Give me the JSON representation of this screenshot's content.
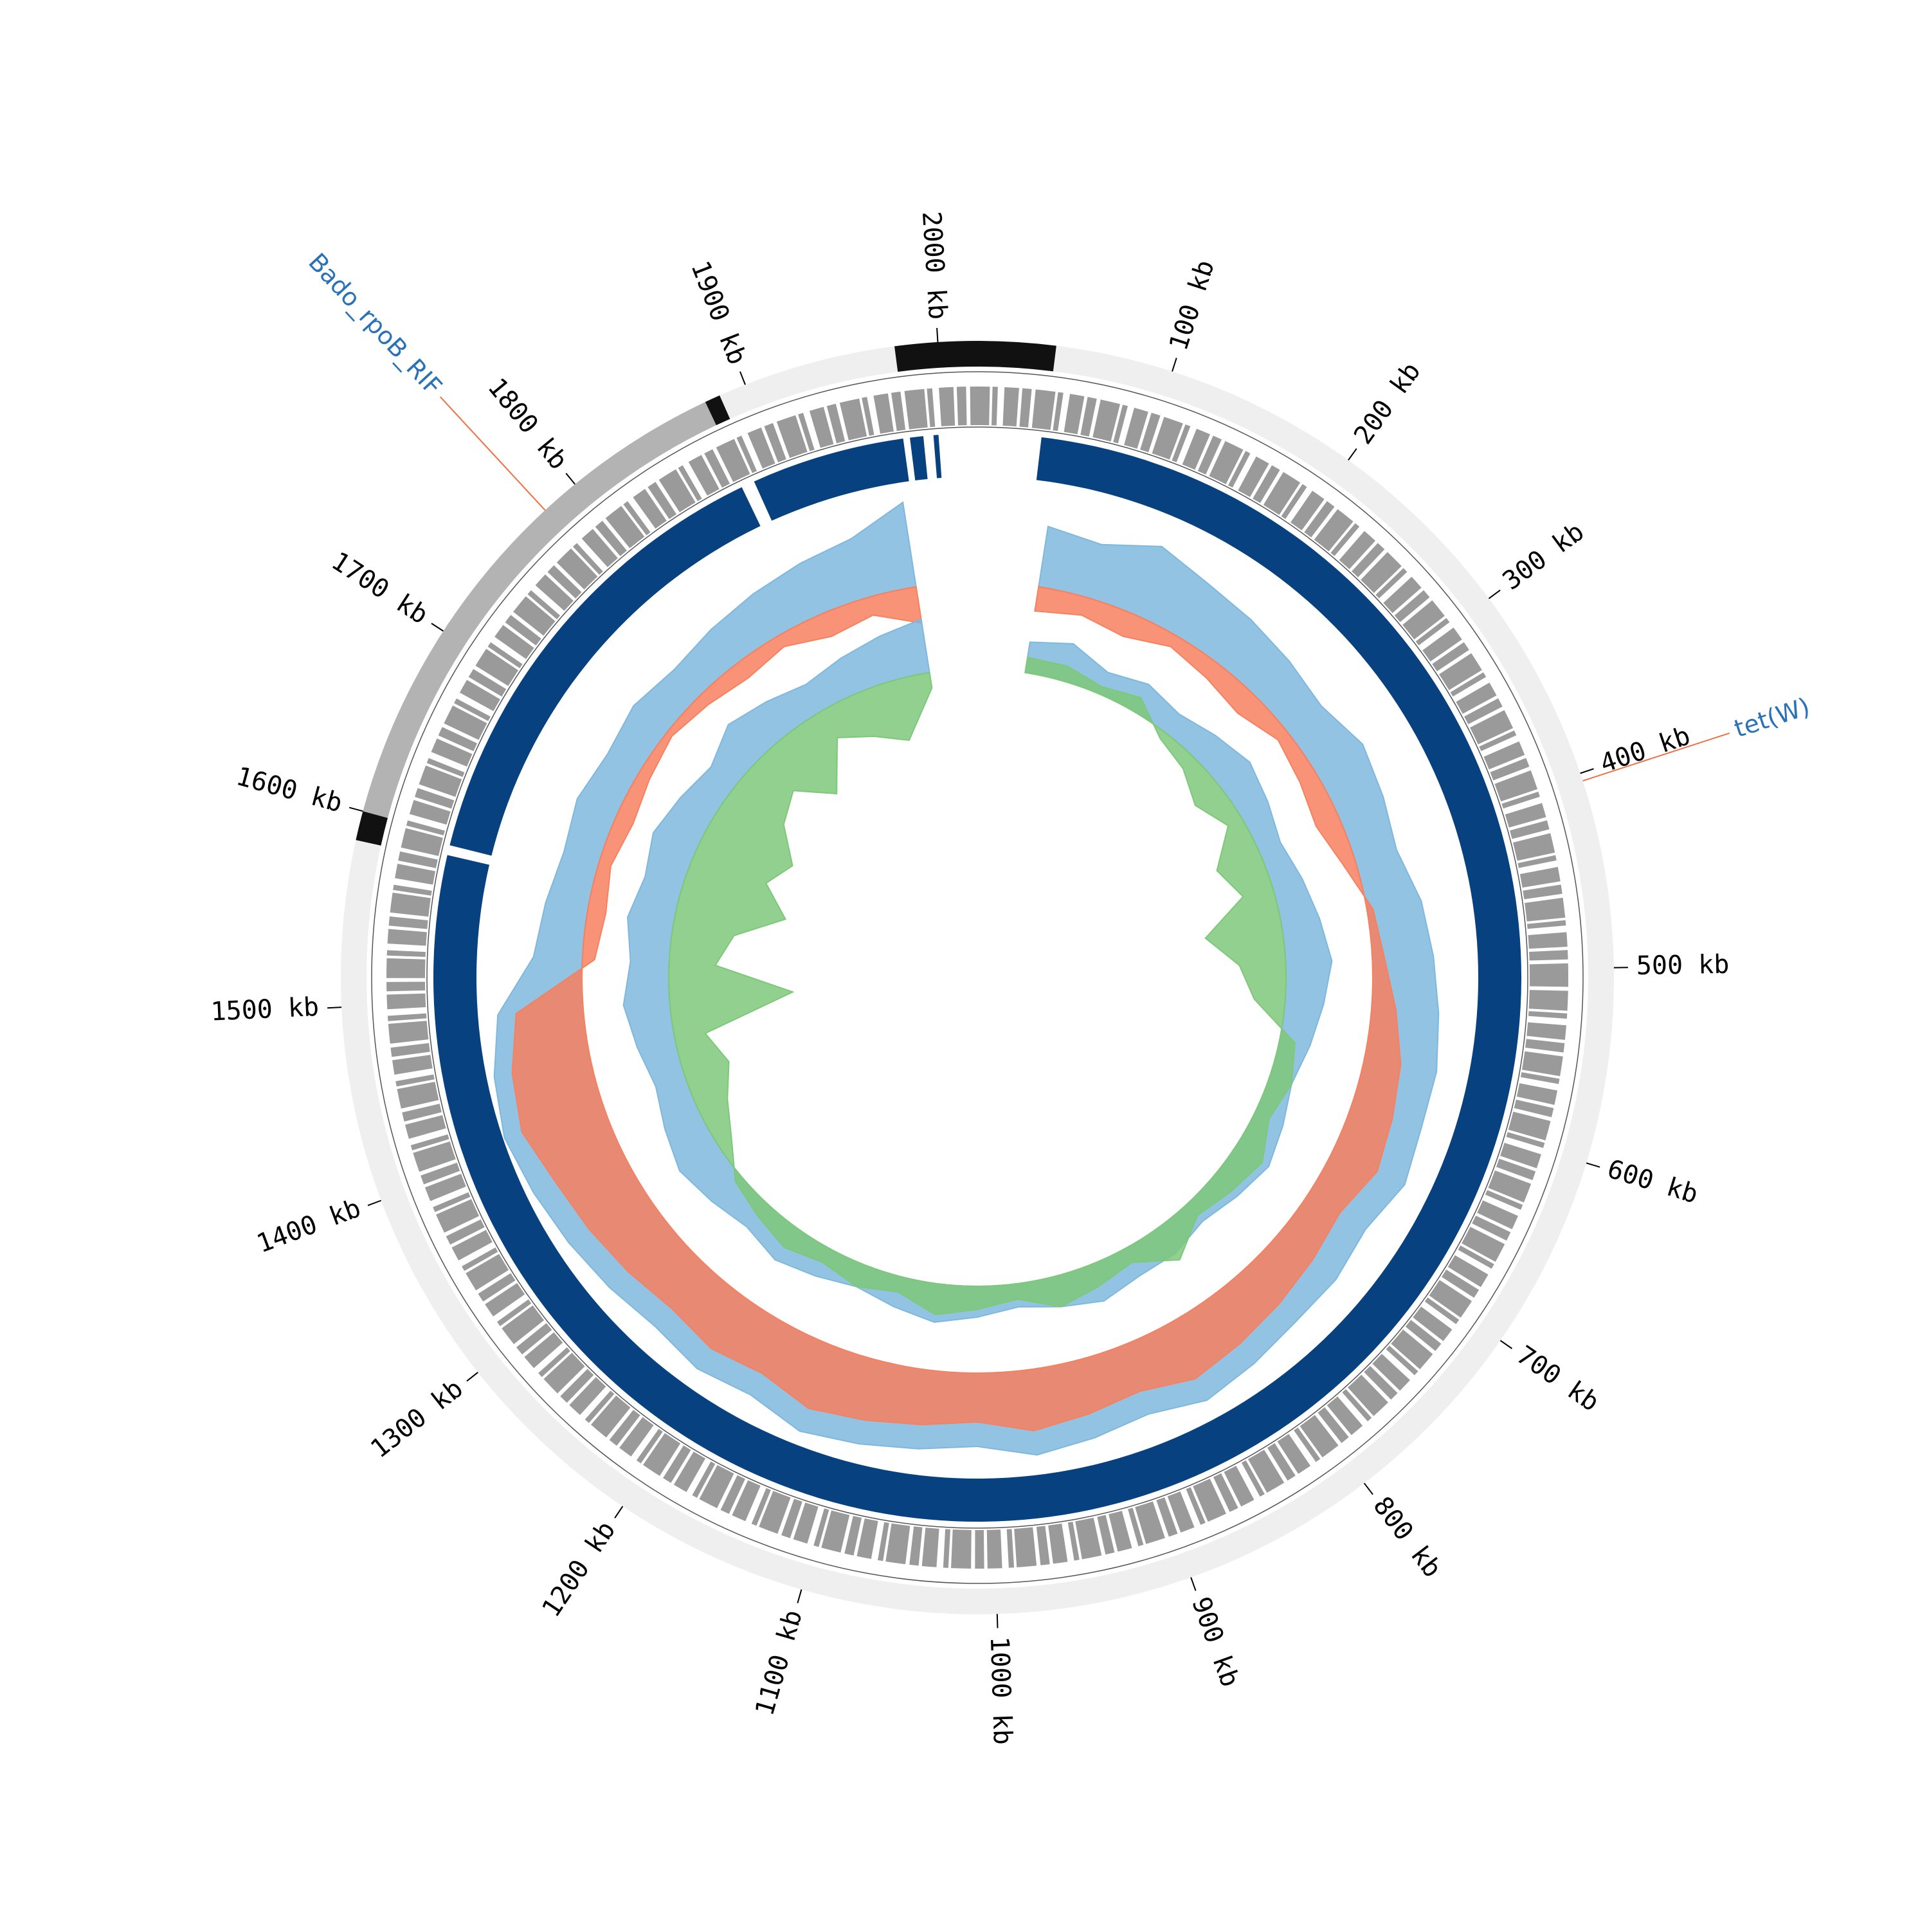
{
  "chart_data": {
    "type": "circos",
    "xlim": [
      0,
      2020
    ],
    "xticks": [
      {
        "value": 100,
        "label": "100 kb"
      },
      {
        "value": 200,
        "label": "200 kb"
      },
      {
        "value": 300,
        "label": "300 kb"
      },
      {
        "value": 400,
        "label": "400 kb"
      },
      {
        "value": 500,
        "label": "500 kb"
      },
      {
        "value": 600,
        "label": "600 kb"
      },
      {
        "value": 700,
        "label": "700 kb"
      },
      {
        "value": 800,
        "label": "800 kb"
      },
      {
        "value": 900,
        "label": "900 kb"
      },
      {
        "value": 1000,
        "label": "1000 kb"
      },
      {
        "value": 1100,
        "label": "1100 kb"
      },
      {
        "value": 1200,
        "label": "1200 kb"
      },
      {
        "value": 1300,
        "label": "1300 kb"
      },
      {
        "value": 1400,
        "label": "1400 kb"
      },
      {
        "value": 1500,
        "label": "1500 kb"
      },
      {
        "value": 1600,
        "label": "1600 kb"
      },
      {
        "value": 1700,
        "label": "1700 kb"
      },
      {
        "value": 1800,
        "label": "1800 kb"
      },
      {
        "value": 1900,
        "label": "1900 kb"
      },
      {
        "value": 2000,
        "label": "2000 kb"
      }
    ],
    "contigs": [
      {
        "start": 40,
        "end": 1585,
        "color": "#efefef"
      },
      {
        "start": 1585,
        "end": 1600,
        "color": "#111111"
      },
      {
        "start": 1600,
        "end": 1878,
        "color": "#b3b3b3"
      },
      {
        "start": 1878,
        "end": 1886,
        "color": "#111111"
      },
      {
        "start": 1886,
        "end": 1978,
        "color": "#efefef"
      },
      {
        "start": 1978,
        "end": 2020,
        "color": "#111111"
      },
      {
        "start": 0,
        "end": 40,
        "color": "#111111"
      }
    ],
    "blocks": {
      "color": "#08417f",
      "segments": [
        {
          "start": 38,
          "end": 1588
        },
        {
          "start": 1594,
          "end": 1876
        },
        {
          "start": 1884,
          "end": 1976
        },
        {
          "start": 1980,
          "end": 1988
        },
        {
          "start": 1994,
          "end": 1997
        }
      ]
    },
    "annotations": [
      {
        "name": "tet(W)",
        "position": 404
      },
      {
        "name": "Bado_rpoB_RIF",
        "position": 1780
      }
    ],
    "tracks": [
      {
        "ylim": [
          -1,
          1
        ],
        "x": [
          50,
          90,
          130,
          170,
          210,
          250,
          290,
          330,
          370,
          410,
          450,
          490,
          530,
          570,
          610,
          650,
          690,
          730,
          770,
          810,
          850,
          890,
          930,
          970,
          1010,
          1050,
          1090,
          1130,
          1170,
          1210,
          1250,
          1290,
          1330,
          1370,
          1410,
          1450,
          1490,
          1530,
          1570,
          1610,
          1650,
          1690,
          1730,
          1770,
          1810,
          1850,
          1890,
          1930,
          1970
        ],
        "series": [
          {
            "color": "#7fb8de",
            "values": [
              0.5,
              0.45,
              0.6,
              0.5,
              0.45,
              0.4,
              0.35,
              0.45,
              0.4,
              0.35,
              0.45,
              0.5,
              0.55,
              0.6,
              0.6,
              0.65,
              0.55,
              0.6,
              0.6,
              0.65,
              0.7,
              0.6,
              0.65,
              0.7,
              0.6,
              0.65,
              0.7,
              0.75,
              0.65,
              0.7,
              0.65,
              0.7,
              0.75,
              0.8,
              0.85,
              0.8,
              0.7,
              0.4,
              0.35,
              0.3,
              0.35,
              0.3,
              0.35,
              0.3,
              0.35,
              0.4,
              0.45,
              0.5,
              0.7
            ]
          },
          {
            "color": "#f7805f",
            "values": [
              -0.2,
              -0.15,
              -0.2,
              -0.1,
              -0.15,
              -0.2,
              -0.1,
              -0.15,
              -0.2,
              -0.1,
              0.05,
              0.1,
              0.2,
              0.3,
              0.35,
              0.4,
              0.3,
              0.35,
              0.4,
              0.45,
              0.5,
              0.4,
              0.45,
              0.5,
              0.4,
              0.45,
              0.5,
              0.55,
              0.45,
              0.5,
              0.45,
              0.5,
              0.55,
              0.6,
              0.7,
              0.65,
              0.55,
              -0.1,
              -0.15,
              -0.1,
              -0.15,
              -0.1,
              -0.05,
              -0.1,
              -0.15,
              -0.1,
              -0.2,
              -0.15,
              -0.3
            ]
          }
        ]
      },
      {
        "ylim": [
          -1,
          1
        ],
        "x": [
          50,
          90,
          130,
          170,
          210,
          250,
          290,
          330,
          370,
          410,
          450,
          490,
          530,
          570,
          610,
          650,
          690,
          730,
          770,
          810,
          850,
          890,
          930,
          970,
          1010,
          1050,
          1090,
          1130,
          1170,
          1210,
          1250,
          1290,
          1330,
          1370,
          1410,
          1450,
          1490,
          1530,
          1570,
          1610,
          1650,
          1690,
          1730,
          1770,
          1810,
          1850,
          1890,
          1930,
          1970
        ],
        "series": [
          {
            "color": "#7fb8de",
            "values": [
              0.2,
              0.25,
              0.15,
              0.2,
              0.15,
              0.2,
              0.25,
              0.2,
              0.15,
              0.2,
              0.25,
              0.3,
              0.25,
              0.2,
              0.15,
              0.2,
              0.25,
              0.2,
              0.15,
              0.2,
              0.2,
              0.25,
              0.2,
              0.15,
              0.2,
              0.25,
              0.2,
              0.15,
              0.2,
              0.25,
              0.2,
              0.25,
              0.3,
              0.25,
              0.2,
              0.25,
              0.3,
              0.25,
              0.3,
              0.25,
              0.3,
              0.25,
              0.2,
              0.3,
              0.25,
              0.2,
              0.25,
              0.3,
              0.35
            ]
          },
          {
            "color": "#7ec87a",
            "values": [
              0.1,
              0.1,
              0.05,
              0.1,
              -0.05,
              -0.1,
              -0.2,
              -0.1,
              -0.3,
              -0.2,
              -0.5,
              -0.3,
              -0.2,
              0.1,
              0.15,
              0.1,
              0.2,
              0.15,
              0.1,
              0.25,
              0.1,
              0.15,
              0.2,
              0.1,
              0.15,
              0.2,
              0.1,
              0.15,
              0.1,
              0.15,
              0.1,
              0.05,
              -0.1,
              -0.2,
              -0.3,
              -0.2,
              -0.8,
              -0.3,
              -0.4,
              -0.7,
              -0.5,
              -0.6,
              -0.4,
              -0.3,
              -0.5,
              -0.2,
              -0.3,
              -0.4,
              -0.1
            ]
          }
        ]
      }
    ]
  }
}
